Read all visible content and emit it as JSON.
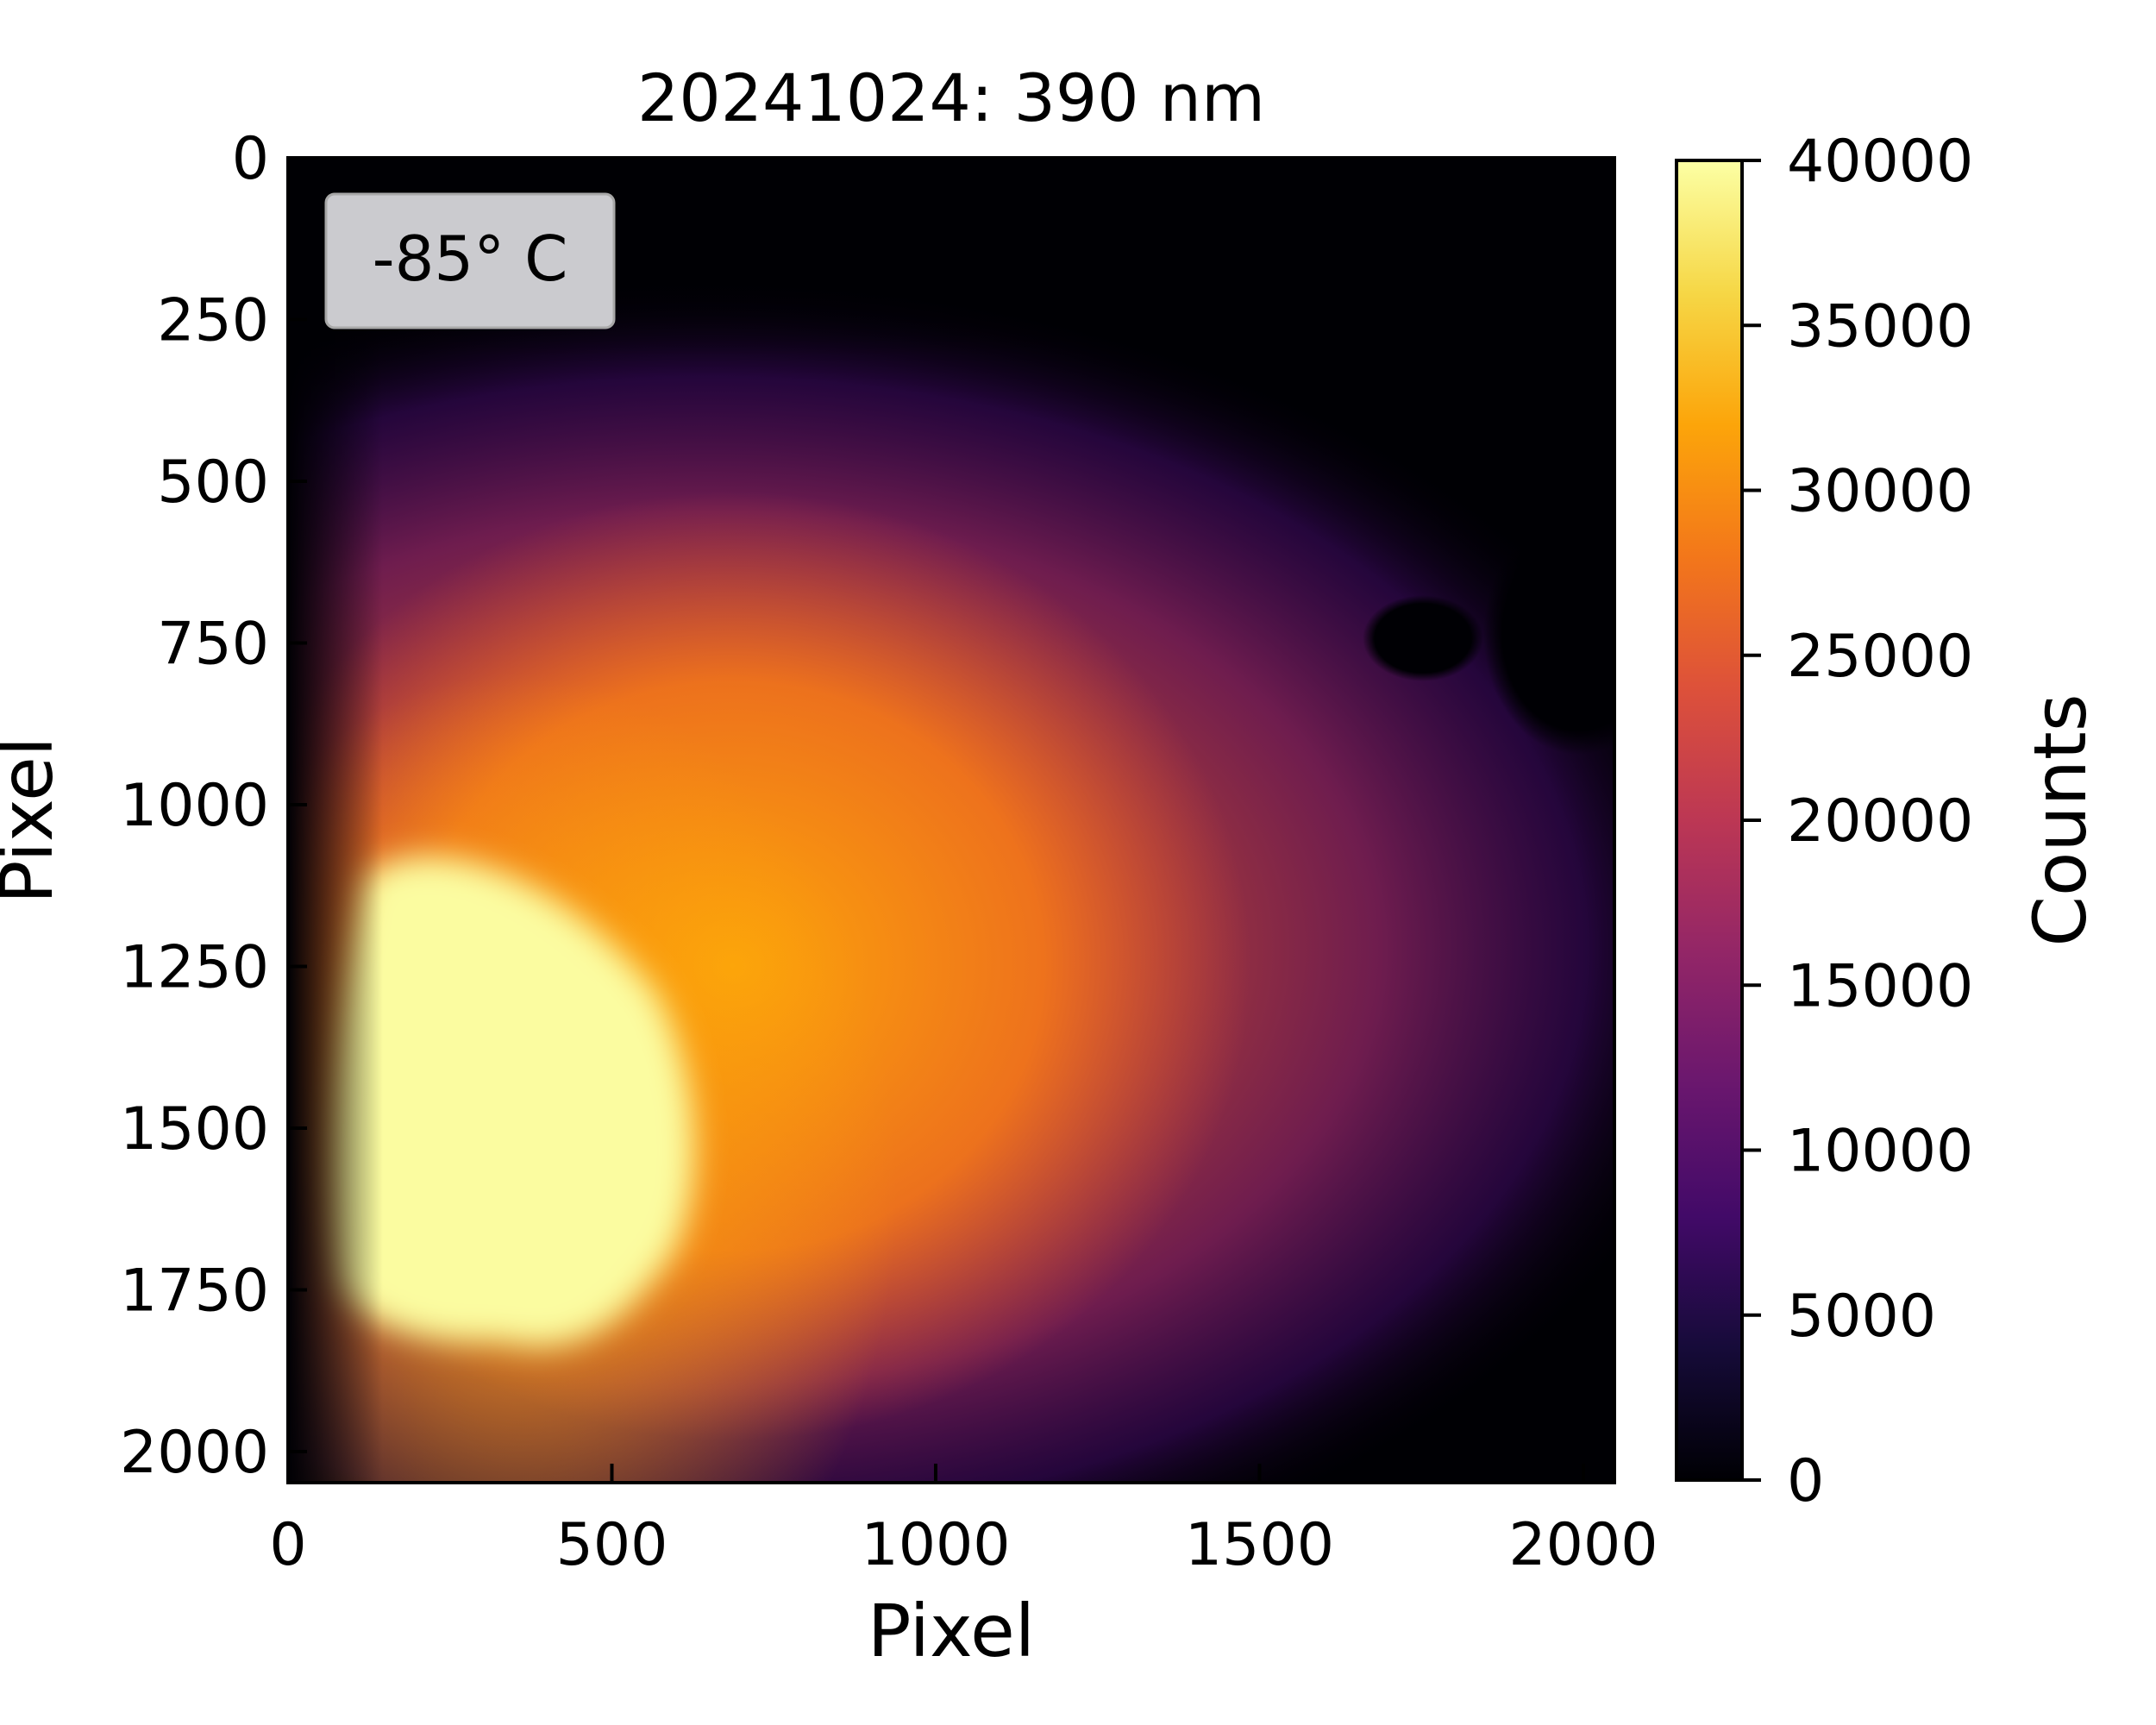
{
  "chart_data": {
    "type": "heatmap",
    "title": "20241024: 390 nm",
    "xlabel": "Pixel",
    "ylabel": "Pixel",
    "xlim": [
      0,
      2048
    ],
    "ylim": [
      2048,
      0
    ],
    "xticks": [
      "0",
      "500",
      "1000",
      "1500",
      "2000"
    ],
    "yticks": [
      "0",
      "250",
      "500",
      "750",
      "1000",
      "1250",
      "1500",
      "1750",
      "2000"
    ],
    "colormap": "inferno",
    "colorbar": {
      "label": "Counts",
      "range": [
        0,
        40000
      ],
      "ticks": [
        "0",
        "5000",
        "10000",
        "15000",
        "20000",
        "25000",
        "30000",
        "35000",
        "40000"
      ]
    },
    "annotation": "-85° C",
    "features": [
      {
        "shape": "saturated-region",
        "center": [
          300,
          1450
        ],
        "value": 40000
      },
      {
        "shape": "dark-blob",
        "center": [
          1960,
          760
        ],
        "value": 0
      }
    ]
  },
  "colors": {
    "annotation_box": "#cbcbcf",
    "axis": "#000000",
    "background": "#ffffff"
  }
}
